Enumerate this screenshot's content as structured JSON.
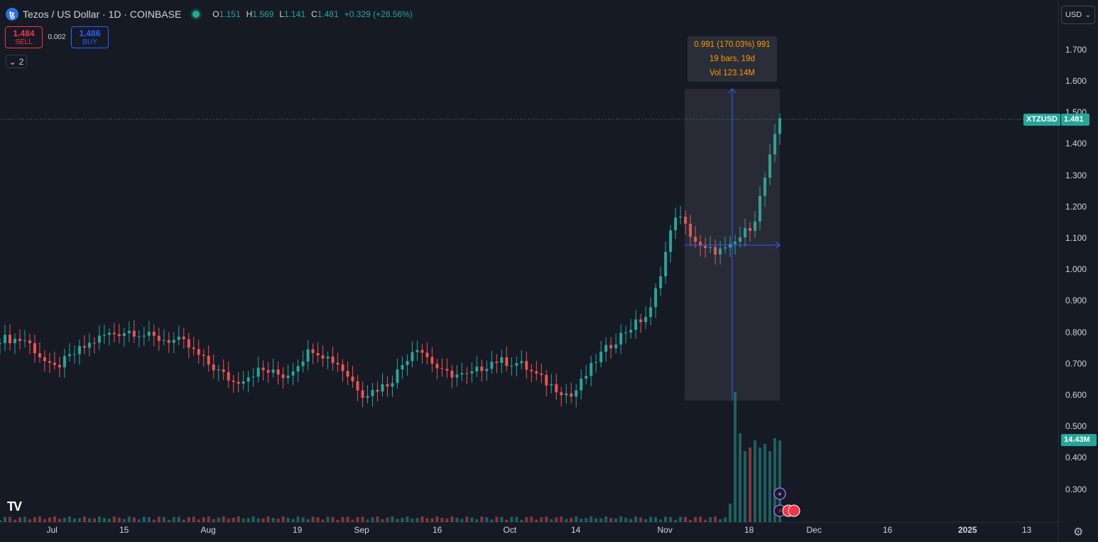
{
  "header": {
    "title": "Tezos / US Dollar · 1D · COINBASE",
    "symbol_icon": "tezos-icon",
    "ohlc": [
      {
        "k": "O",
        "v": "1.151"
      },
      {
        "k": "H",
        "v": "1.569"
      },
      {
        "k": "L",
        "v": "1.141"
      },
      {
        "k": "C",
        "v": "1.481"
      },
      {
        "k": "",
        "v": "+0.329 (+28.56%)"
      }
    ]
  },
  "trade": {
    "sell_price": "1.484",
    "sell_label": "SELL",
    "spread": "0.002",
    "buy_price": "1.486",
    "buy_label": "BUY"
  },
  "indicators_collapse": {
    "icon": "chevron-down-icon",
    "count": "2"
  },
  "currency_select": {
    "value": "USD",
    "icon": "chevron-down-icon"
  },
  "price_tag": {
    "symbol": "XTZUSD",
    "price": "1.481"
  },
  "volume_tag": "14.43M",
  "measure_tooltip": {
    "line1": "0.991 (170.03%) 991",
    "line2": "19 bars, 19d",
    "line3": "Vol 123.14M"
  },
  "colors": {
    "up": "#26a69a",
    "down": "#ef5350",
    "background": "#161a25",
    "accent": "#2962ff",
    "measure": "#ff9800"
  },
  "chart_data": {
    "type": "candlestick",
    "y_ticks": [
      "1.700",
      "1.600",
      "1.500",
      "1.400",
      "1.300",
      "1.200",
      "1.100",
      "1.000",
      "0.900",
      "0.800",
      "0.700",
      "0.600",
      "0.500",
      "0.400",
      "0.300"
    ],
    "ylim": [
      0.2,
      1.8
    ],
    "x_ticks": [
      "Jul",
      "15",
      "Aug",
      "19",
      "Sep",
      "16",
      "Oct",
      "14",
      "Nov",
      "18",
      "Dec",
      "16",
      "2025",
      "13"
    ],
    "grid": false,
    "series": [
      {
        "date": "Jun 22",
        "c": 0.78
      },
      {
        "date": "Jul 01",
        "c": 0.775
      },
      {
        "date": "Jul 05",
        "c": 0.68
      },
      {
        "date": "Jul 09",
        "c": 0.74
      },
      {
        "date": "Jul 14",
        "c": 0.79
      },
      {
        "date": "Jul 19",
        "c": 0.805
      },
      {
        "date": "Jul 24",
        "c": 0.78
      },
      {
        "date": "Jul 29",
        "c": 0.77
      },
      {
        "date": "Aug 03",
        "c": 0.7
      },
      {
        "date": "Aug 05",
        "c": 0.64
      },
      {
        "date": "Aug 10",
        "c": 0.68
      },
      {
        "date": "Aug 19",
        "c": 0.66
      },
      {
        "date": "Aug 24",
        "c": 0.75
      },
      {
        "date": "Aug 30",
        "c": 0.7
      },
      {
        "date": "Sep 06",
        "c": 0.6
      },
      {
        "date": "Sep 16",
        "c": 0.64
      },
      {
        "date": "Sep 27",
        "c": 0.76
      },
      {
        "date": "Oct 02",
        "c": 0.67
      },
      {
        "date": "Oct 10",
        "c": 0.66
      },
      {
        "date": "Oct 18",
        "c": 0.71
      },
      {
        "date": "Oct 25",
        "c": 0.7
      },
      {
        "date": "Oct 30",
        "c": 0.64
      },
      {
        "date": "Nov 04",
        "c": 0.595
      },
      {
        "date": "Nov 10",
        "c": 0.72
      },
      {
        "date": "Nov 15",
        "c": 0.8
      },
      {
        "date": "Nov 16",
        "c": 0.86
      },
      {
        "date": "Nov 18",
        "c": 1.18
      },
      {
        "date": "Nov 19",
        "c": 1.06
      },
      {
        "date": "Nov 21",
        "c": 1.06
      },
      {
        "date": "Nov 23",
        "c": 1.15
      },
      {
        "date": "Nov 24",
        "c": 1.481
      }
    ],
    "volume_max_label": "14.43M"
  }
}
